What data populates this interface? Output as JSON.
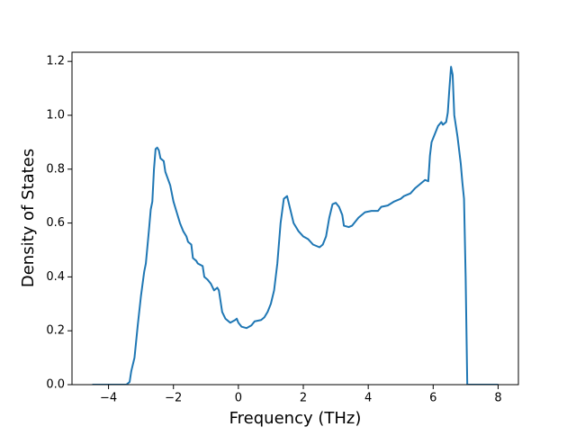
{
  "chart_data": {
    "type": "line",
    "xlabel": "Frequency (THz)",
    "ylabel": "Density of States",
    "xlim": [
      -5.125,
      8.625
    ],
    "ylim": [
      0,
      1.234
    ],
    "xticks": [
      {
        "value": -4,
        "label": "−4"
      },
      {
        "value": -2,
        "label": "−2"
      },
      0,
      2,
      4,
      6,
      8
    ],
    "yticks": [
      {
        "value": 0,
        "label": "0.0"
      },
      0.2,
      0.4,
      0.6,
      0.8,
      {
        "value": 1,
        "label": "1.0"
      },
      1.2
    ],
    "grid": false,
    "series": [
      {
        "color": "#1f77b4",
        "x": [
          -4.5,
          -3.45,
          -3.35,
          -3.3,
          -3.2,
          -3.1,
          -3.0,
          -2.9,
          -2.85,
          -2.75,
          -2.7,
          -2.65,
          -2.6,
          -2.55,
          -2.5,
          -2.45,
          -2.4,
          -2.3,
          -2.25,
          -2.1,
          -2.0,
          -1.9,
          -1.8,
          -1.7,
          -1.6,
          -1.55,
          -1.45,
          -1.4,
          -1.3,
          -1.25,
          -1.1,
          -1.05,
          -0.95,
          -0.85,
          -0.75,
          -0.65,
          -0.6,
          -0.5,
          -0.4,
          -0.25,
          -0.1,
          -0.05,
          0,
          0.1,
          0.25,
          0.4,
          0.5,
          0.7,
          0.8,
          0.9,
          1.0,
          1.1,
          1.2,
          1.3,
          1.4,
          1.5,
          1.6,
          1.7,
          1.85,
          2.0,
          2.15,
          2.3,
          2.5,
          2.6,
          2.7,
          2.8,
          2.9,
          3.0,
          3.1,
          3.2,
          3.25,
          3.4,
          3.5,
          3.7,
          3.9,
          4.1,
          4.3,
          4.4,
          4.6,
          4.8,
          5.0,
          5.1,
          5.3,
          5.45,
          5.6,
          5.75,
          5.85,
          5.9,
          5.95,
          6.05,
          6.15,
          6.25,
          6.3,
          6.4,
          6.45,
          6.5,
          6.55,
          6.6,
          6.65,
          6.75,
          6.85,
          6.9,
          6.95,
          7.0,
          7.05,
          8.0
        ],
        "values": [
          0,
          0,
          0.01,
          0.05,
          0.1,
          0.22,
          0.33,
          0.42,
          0.45,
          0.58,
          0.65,
          0.68,
          0.8,
          0.875,
          0.88,
          0.87,
          0.84,
          0.83,
          0.79,
          0.74,
          0.68,
          0.64,
          0.6,
          0.57,
          0.55,
          0.53,
          0.52,
          0.47,
          0.46,
          0.45,
          0.44,
          0.4,
          0.39,
          0.375,
          0.35,
          0.36,
          0.35,
          0.27,
          0.245,
          0.23,
          0.24,
          0.245,
          0.23,
          0.215,
          0.21,
          0.22,
          0.235,
          0.24,
          0.25,
          0.27,
          0.3,
          0.35,
          0.45,
          0.6,
          0.69,
          0.7,
          0.65,
          0.6,
          0.57,
          0.55,
          0.54,
          0.52,
          0.51,
          0.52,
          0.55,
          0.62,
          0.67,
          0.675,
          0.66,
          0.63,
          0.59,
          0.585,
          0.59,
          0.62,
          0.64,
          0.645,
          0.645,
          0.66,
          0.665,
          0.68,
          0.69,
          0.7,
          0.71,
          0.73,
          0.745,
          0.76,
          0.755,
          0.85,
          0.9,
          0.93,
          0.96,
          0.975,
          0.965,
          0.975,
          1.01,
          1.1,
          1.18,
          1.15,
          1.0,
          0.92,
          0.82,
          0.75,
          0.69,
          0.4,
          0,
          0
        ]
      }
    ]
  }
}
